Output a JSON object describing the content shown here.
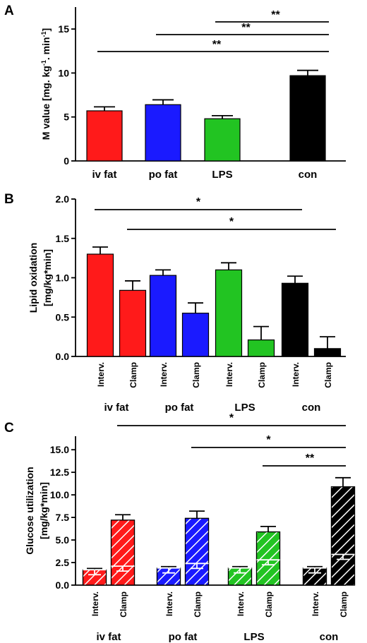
{
  "chart_data": [
    {
      "type": "bar",
      "panel": "A",
      "ylabel": "M value [mg. kg-1. min-1]",
      "ylim": [
        0,
        17.5
      ],
      "yticks": [
        "0",
        "5",
        "10",
        "15"
      ],
      "categories": [
        "iv fat",
        "po fat",
        "LPS",
        "con"
      ],
      "colors": [
        "#ff1a1a",
        "#1a1aff",
        "#22c422",
        "#000000"
      ],
      "values": [
        5.7,
        6.4,
        4.8,
        9.7
      ],
      "errors": [
        0.45,
        0.55,
        0.35,
        0.6
      ],
      "significance": [
        {
          "from": "iv fat",
          "to": "con",
          "label": "**"
        },
        {
          "from": "po fat",
          "to": "con",
          "label": "**"
        },
        {
          "from": "LPS",
          "to": "con",
          "label": "**"
        }
      ]
    },
    {
      "type": "bar",
      "panel": "B",
      "ylabel": "Lipid oxidation [mg/kg*min]",
      "ylim": [
        0,
        2.0
      ],
      "yticks": [
        "0.0",
        "0.5",
        "1.0",
        "1.5",
        "2.0"
      ],
      "categories": [
        "iv fat",
        "po fat",
        "LPS",
        "con"
      ],
      "sub_categories": [
        "Interv.",
        "Clamp"
      ],
      "colors": [
        "#ff1a1a",
        "#1a1aff",
        "#22c422",
        "#000000"
      ],
      "series": [
        {
          "values": [
            1.3,
            1.03,
            1.1,
            0.93
          ],
          "errors": [
            0.09,
            0.07,
            0.09,
            0.09
          ]
        },
        {
          "values": [
            0.84,
            0.55,
            0.21,
            0.1
          ],
          "errors": [
            0.12,
            0.13,
            0.17,
            0.15
          ]
        }
      ],
      "significance": [
        {
          "from": "iv fat Interv.",
          "to": "con Interv.",
          "label": "*"
        },
        {
          "from": "iv fat Clamp",
          "to": "con Clamp",
          "label": "*"
        }
      ]
    },
    {
      "type": "bar",
      "panel": "C",
      "ylabel": "Glucose utilization [mg/kg*min]",
      "ylim": [
        0,
        16.5
      ],
      "yticks": [
        "0.0",
        "2.5",
        "5.0",
        "7.5",
        "10.0",
        "12.5",
        "15.0"
      ],
      "categories": [
        "iv fat",
        "po fat",
        "LPS",
        "con"
      ],
      "sub_categories": [
        "Interv.",
        "Clamp"
      ],
      "colors": [
        "#ff1a1a",
        "#1a1aff",
        "#22c422",
        "#000000"
      ],
      "series": [
        {
          "values": [
            1.7,
            1.9,
            1.9,
            1.9
          ],
          "errors": [
            0.15,
            0.15,
            0.15,
            0.15
          ],
          "lower_segment": [
            1.7,
            1.9,
            1.9,
            1.9
          ]
        },
        {
          "values": [
            7.2,
            7.4,
            5.9,
            10.9
          ],
          "errors": [
            0.6,
            0.8,
            0.6,
            1.0
          ],
          "lower_segment": [
            2.1,
            2.4,
            2.8,
            3.4
          ]
        }
      ],
      "significance": [
        {
          "from": "iv fat Clamp",
          "to": "con Clamp",
          "label": "*"
        },
        {
          "from": "po fat Clamp",
          "to": "con Clamp",
          "label": "*"
        },
        {
          "from": "LPS Clamp",
          "to": "con Clamp",
          "label": "**"
        }
      ]
    }
  ]
}
